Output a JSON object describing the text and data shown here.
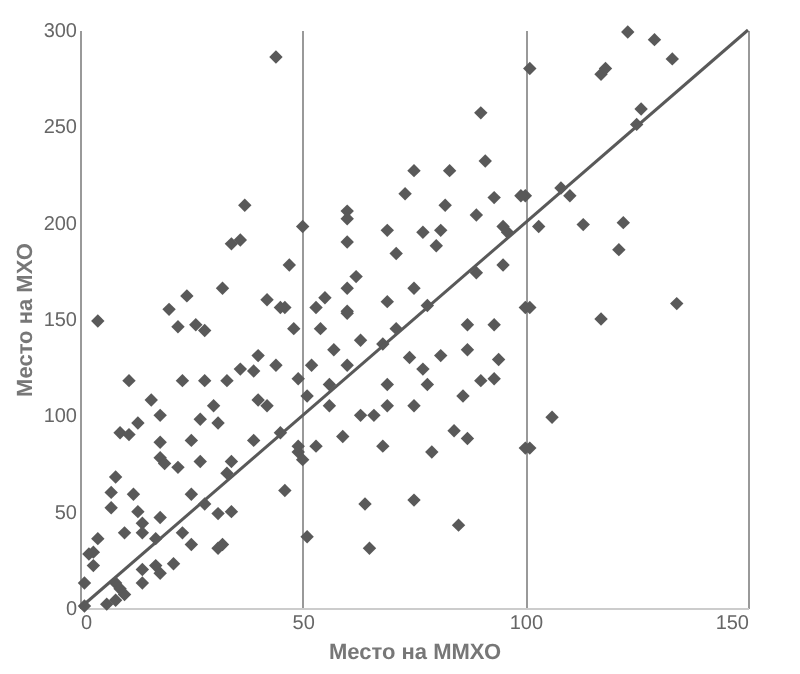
{
  "chart_data": {
    "type": "scatter",
    "xlabel": "Место на ММХО",
    "ylabel": "Место на МХО",
    "xlim": [
      0,
      150
    ],
    "ylim": [
      0,
      300
    ],
    "xticks": [
      0,
      50,
      100,
      150
    ],
    "yticks": [
      0,
      50,
      100,
      150,
      200,
      250,
      300
    ],
    "grid": "x",
    "series": [
      {
        "marker": "diamond",
        "color": "#595959",
        "x": [
          123,
          129,
          133,
          101,
          117,
          118,
          126,
          125,
          108,
          110,
          100,
          103,
          113,
          122,
          121,
          101,
          117,
          134,
          106,
          101,
          44,
          90,
          91,
          75,
          83,
          73,
          82,
          93,
          89,
          60,
          60,
          99,
          50,
          69,
          77,
          81,
          60,
          71,
          80,
          95,
          96,
          47,
          89,
          95,
          62,
          60,
          55,
          53,
          60,
          75,
          69,
          78,
          100,
          46,
          48,
          54,
          60,
          71,
          87,
          93,
          63,
          68,
          74,
          81,
          87,
          94,
          52,
          57,
          60,
          77,
          78,
          93,
          90,
          49,
          51,
          56,
          69,
          86,
          56,
          63,
          66,
          69,
          75,
          84,
          87,
          79,
          68,
          59,
          53,
          49,
          50,
          46,
          64,
          75,
          85,
          51,
          65,
          100,
          37,
          36,
          34,
          32,
          24,
          20,
          4,
          42,
          45,
          22,
          26,
          28,
          11,
          23,
          28,
          33,
          36,
          39,
          40,
          44,
          16,
          30,
          40,
          42,
          31,
          18,
          13,
          9,
          11,
          18,
          25,
          39,
          45,
          49,
          18,
          19,
          22,
          27,
          34,
          33,
          8,
          7,
          12,
          7,
          13,
          25,
          28,
          31,
          34,
          14,
          18,
          10,
          14,
          23,
          17,
          4,
          2,
          3,
          25,
          31,
          32,
          3,
          14,
          17,
          18,
          21,
          14,
          8,
          1,
          10,
          6,
          1,
          8,
          9,
          27
        ],
        "values": [
          299,
          295,
          285,
          280,
          277,
          280,
          259,
          251,
          218,
          214,
          214,
          198,
          199,
          200,
          186,
          156,
          150,
          158,
          99,
          83,
          286,
          257,
          232,
          227,
          227,
          215,
          209,
          213,
          204,
          206,
          202,
          214,
          198,
          196,
          195,
          196,
          190,
          184,
          188,
          198,
          195,
          178,
          174,
          178,
          172,
          166,
          161,
          156,
          154,
          166,
          159,
          157,
          156,
          156,
          145,
          145,
          153,
          145,
          147,
          147,
          139,
          137,
          130,
          131,
          134,
          129,
          126,
          134,
          126,
          124,
          116,
          119,
          118,
          119,
          110,
          116,
          116,
          110,
          105,
          100,
          100,
          105,
          105,
          92,
          88,
          81,
          84,
          89,
          84,
          81,
          77,
          61,
          54,
          56,
          43,
          37,
          31,
          83,
          209,
          191,
          189,
          166,
          162,
          155,
          149,
          160,
          156,
          146,
          147,
          144,
          118,
          118,
          118,
          118,
          124,
          123,
          131,
          126,
          108,
          105,
          108,
          105,
          96,
          100,
          96,
          91,
          90,
          86,
          87,
          87,
          91,
          84,
          78,
          75,
          73,
          76,
          76,
          70,
          68,
          60,
          59,
          52,
          50,
          59,
          54,
          49,
          50,
          44,
          47,
          39,
          39,
          39,
          36,
          36,
          28,
          29,
          33,
          31,
          33,
          22,
          20,
          22,
          18,
          23,
          13,
          13,
          13,
          7,
          2,
          1,
          4,
          10,
          98
        ]
      },
      {
        "type": "line",
        "marker": "none",
        "color": "#595959",
        "x": [
          0,
          150
        ],
        "values": [
          0,
          300
        ]
      }
    ]
  }
}
